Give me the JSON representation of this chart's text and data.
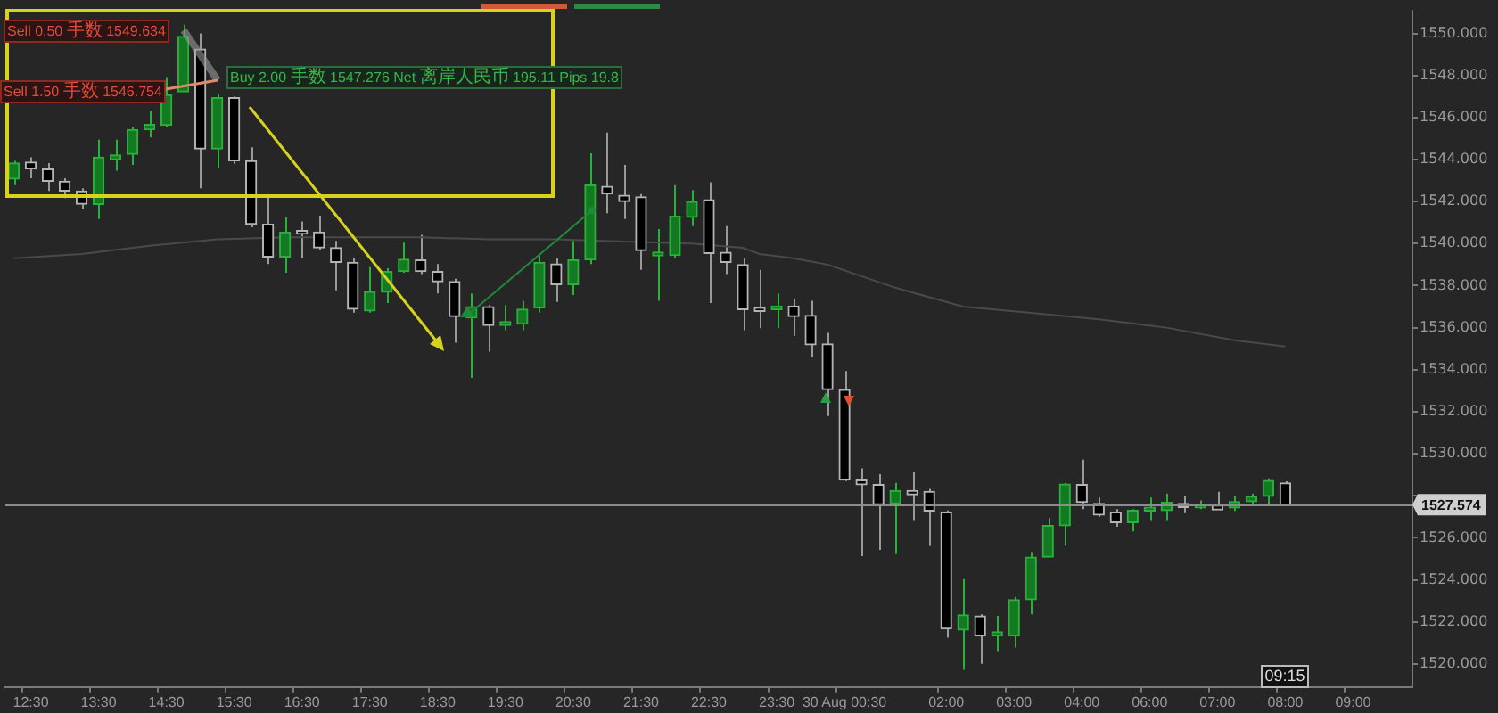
{
  "chart_data": {
    "type": "candlestick",
    "categories": [
      null,
      "12:30",
      null,
      null,
      null,
      "13:30",
      null,
      null,
      null,
      "14:30",
      null,
      null,
      null,
      "15:30",
      null,
      null,
      null,
      "16:30",
      null,
      null,
      null,
      "17:30",
      null,
      null,
      null,
      "18:30",
      null,
      null,
      null,
      "19:30",
      null,
      null,
      null,
      "20:30",
      null,
      null,
      null,
      "21:30",
      null,
      null,
      null,
      "22:30",
      null,
      null,
      null,
      "23:30",
      null,
      null,
      null,
      "30 Aug 00:30",
      null,
      null,
      null,
      null,
      null,
      "02:00",
      null,
      null,
      null,
      "03:00",
      null,
      null,
      null,
      "04:00",
      null,
      null,
      null,
      "06:00",
      null,
      null,
      null,
      "07:00",
      null,
      null,
      null,
      "08:00",
      null,
      null,
      null,
      "09:00",
      null,
      null,
      null
    ],
    "ohlc": [
      [
        1543.07,
        1543.94,
        1542.78,
        1543.83
      ],
      [
        1543.88,
        1544.11,
        1543.11,
        1543.55
      ],
      [
        1543.55,
        1543.83,
        1542.5,
        1542.97
      ],
      [
        1542.97,
        1543.11,
        1542.17,
        1542.5
      ],
      [
        1542.5,
        1542.63,
        1541.67,
        1541.88
      ],
      [
        1541.86,
        1544.94,
        1541.17,
        1544.11
      ],
      [
        1544.0,
        1544.94,
        1543.47,
        1544.22
      ],
      [
        1544.25,
        1545.55,
        1543.75,
        1545.42
      ],
      [
        1545.42,
        1546.33,
        1545.05,
        1545.67
      ],
      [
        1545.63,
        1547.92,
        1545.55,
        1547.08
      ],
      [
        1547.22,
        1550.42,
        1547.22,
        1549.86
      ],
      [
        1549.25,
        1550.0,
        1542.63,
        1544.5
      ],
      [
        1544.5,
        1547.1,
        1543.61,
        1546.94
      ],
      [
        1546.94,
        1547.0,
        1543.8,
        1543.94
      ],
      [
        1543.94,
        1544.58,
        1540.78,
        1540.92
      ],
      [
        1540.92,
        1542.22,
        1539.03,
        1539.36
      ],
      [
        1539.36,
        1541.25,
        1538.61,
        1540.55
      ],
      [
        1540.5,
        1541.05,
        1539.3,
        1540.45
      ],
      [
        1540.55,
        1541.33,
        1539.7,
        1539.8
      ],
      [
        1539.8,
        1540.13,
        1537.78,
        1539.11
      ],
      [
        1539.11,
        1539.3,
        1536.72,
        1536.88
      ],
      [
        1536.8,
        1538.88,
        1536.72,
        1537.72
      ],
      [
        1537.69,
        1538.83,
        1537.17,
        1538.67
      ],
      [
        1538.67,
        1540.05,
        1538.61,
        1539.25
      ],
      [
        1539.22,
        1540.42,
        1538.55,
        1538.67
      ],
      [
        1538.67,
        1539.03,
        1537.63,
        1538.19
      ],
      [
        1538.19,
        1538.33,
        1535.28,
        1536.53
      ],
      [
        1536.47,
        1537.63,
        1533.61,
        1537.0
      ],
      [
        1537.0,
        1537.08,
        1534.86,
        1536.11
      ],
      [
        1536.11,
        1537.08,
        1535.88,
        1536.19
      ],
      [
        1536.17,
        1537.27,
        1535.88,
        1536.88
      ],
      [
        1536.94,
        1539.44,
        1536.72,
        1539.11
      ],
      [
        1539.03,
        1539.3,
        1537.22,
        1538.05
      ],
      [
        1538.05,
        1540.13,
        1537.55,
        1539.22
      ],
      [
        1539.22,
        1544.3,
        1539.03,
        1542.78
      ],
      [
        1542.72,
        1545.28,
        1541.44,
        1542.36
      ],
      [
        1542.3,
        1543.75,
        1541.17,
        1542.0
      ],
      [
        1542.22,
        1542.36,
        1538.75,
        1539.67
      ],
      [
        1539.42,
        1540.69,
        1537.28,
        1539.5
      ],
      [
        1539.44,
        1542.78,
        1539.3,
        1541.3
      ],
      [
        1541.25,
        1542.55,
        1540.83,
        1542.0
      ],
      [
        1542.08,
        1542.92,
        1537.17,
        1539.53
      ],
      [
        1539.58,
        1540.83,
        1538.55,
        1539.11
      ],
      [
        1539.0,
        1539.3,
        1535.88,
        1536.86
      ],
      [
        1536.94,
        1538.75,
        1535.97,
        1536.78
      ],
      [
        1536.86,
        1537.63,
        1535.97,
        1537.03
      ],
      [
        1537.03,
        1537.36,
        1535.61,
        1536.53
      ],
      [
        1536.58,
        1537.28,
        1534.58,
        1535.19
      ],
      [
        1535.22,
        1535.75,
        1531.8,
        1533.05
      ],
      [
        1533.05,
        1533.94,
        1528.7,
        1528.75
      ],
      [
        1528.75,
        1529.3,
        1525.13,
        1528.53
      ],
      [
        1528.53,
        1529.03,
        1525.42,
        1527.58
      ],
      [
        1527.63,
        1528.61,
        1525.22,
        1528.25
      ],
      [
        1528.25,
        1529.11,
        1526.8,
        1528.05
      ],
      [
        1528.2,
        1528.33,
        1525.61,
        1527.28
      ],
      [
        1527.22,
        1527.3,
        1521.25,
        1521.67
      ],
      [
        1521.61,
        1524.03,
        1519.72,
        1522.33
      ],
      [
        1522.28,
        1522.36,
        1520.0,
        1521.33
      ],
      [
        1521.33,
        1522.28,
        1520.61,
        1521.53
      ],
      [
        1521.33,
        1523.19,
        1520.78,
        1523.05
      ],
      [
        1523.05,
        1525.33,
        1522.36,
        1525.08
      ],
      [
        1525.08,
        1526.94,
        1525.08,
        1526.58
      ],
      [
        1526.58,
        1528.61,
        1525.61,
        1528.55
      ],
      [
        1528.53,
        1529.72,
        1527.36,
        1527.69
      ],
      [
        1527.63,
        1527.92,
        1527.0,
        1527.08
      ],
      [
        1527.22,
        1527.36,
        1526.53,
        1526.72
      ],
      [
        1526.72,
        1527.36,
        1526.3,
        1527.3
      ],
      [
        1527.28,
        1527.92,
        1526.8,
        1527.33
      ],
      [
        1527.3,
        1528.11,
        1526.8,
        1527.69
      ],
      [
        1527.63,
        1527.97,
        1527.17,
        1527.44
      ],
      [
        1527.42,
        1527.78,
        1527.36,
        1527.53
      ],
      [
        1527.55,
        1528.19,
        1527.33,
        1527.33
      ],
      [
        1527.42,
        1528.0,
        1527.28,
        1527.72
      ],
      [
        1527.72,
        1528.11,
        1527.61,
        1527.97
      ],
      [
        1527.97,
        1528.83,
        1527.5,
        1528.72
      ],
      [
        1528.61,
        1528.69,
        1527.5,
        1527.57
      ],
      null,
      null,
      null,
      null,
      null,
      null,
      null
    ],
    "series": [
      {
        "type": "line",
        "color": "#4a4a4a",
        "values": [
          1539.3,
          null,
          null,
          null,
          1539.5,
          null,
          null,
          null,
          1539.9,
          null,
          null,
          null,
          1540.2,
          null,
          null,
          null,
          1540.3,
          null,
          null,
          null,
          1540.3,
          null,
          null,
          null,
          1540.3,
          null,
          null,
          null,
          1540.2,
          null,
          null,
          null,
          1540.2,
          null,
          null,
          null,
          1540.1,
          null,
          null,
          null,
          1540.0,
          null,
          null,
          1539.8,
          1539.5,
          null,
          1539.3,
          null,
          1539.0,
          null,
          null,
          null,
          1537.9,
          null,
          null,
          null,
          1537.0,
          null,
          null,
          null,
          1536.7,
          null,
          null,
          null,
          1536.4,
          null,
          null,
          null,
          1536.0,
          null,
          null,
          null,
          1535.4,
          null,
          null,
          1535.1,
          null,
          null,
          null,
          null,
          null,
          null,
          null
        ]
      }
    ],
    "ylim": [
      1518.9,
      1551.1
    ],
    "yticks": [
      {
        "value": 1520,
        "label": "1520.000"
      },
      {
        "value": 1522,
        "label": "1522.000"
      },
      {
        "value": 1524,
        "label": "1524.000"
      },
      {
        "value": 1526,
        "label": "1526.000"
      },
      {
        "value": 1528,
        "label": null
      },
      {
        "value": 1530,
        "label": "1530.000"
      },
      {
        "value": 1532,
        "label": "1532.000"
      },
      {
        "value": 1534,
        "label": "1534.000"
      },
      {
        "value": 1536,
        "label": "1536.000"
      },
      {
        "value": 1538,
        "label": "1538.000"
      },
      {
        "value": 1540,
        "label": "1540.000"
      },
      {
        "value": 1542,
        "label": "1542.000"
      },
      {
        "value": 1544,
        "label": "1544.000"
      },
      {
        "value": 1546,
        "label": "1546.000"
      },
      {
        "value": 1548,
        "label": "1548.000"
      },
      {
        "value": 1550,
        "label": "1550.000"
      }
    ],
    "ref_lines": [
      {
        "axis": "y",
        "value": 1527.574,
        "label": "1527.574",
        "color": "#8c8c8c"
      }
    ],
    "annotations": [
      "Sell 0.50 手数 1549.634",
      "Sell 1.50 手数 1546.754",
      "Buy 2.00 手数 1547.276 Net 离岸人民币 195.11 Pips 19.8",
      "09:15"
    ]
  }
}
